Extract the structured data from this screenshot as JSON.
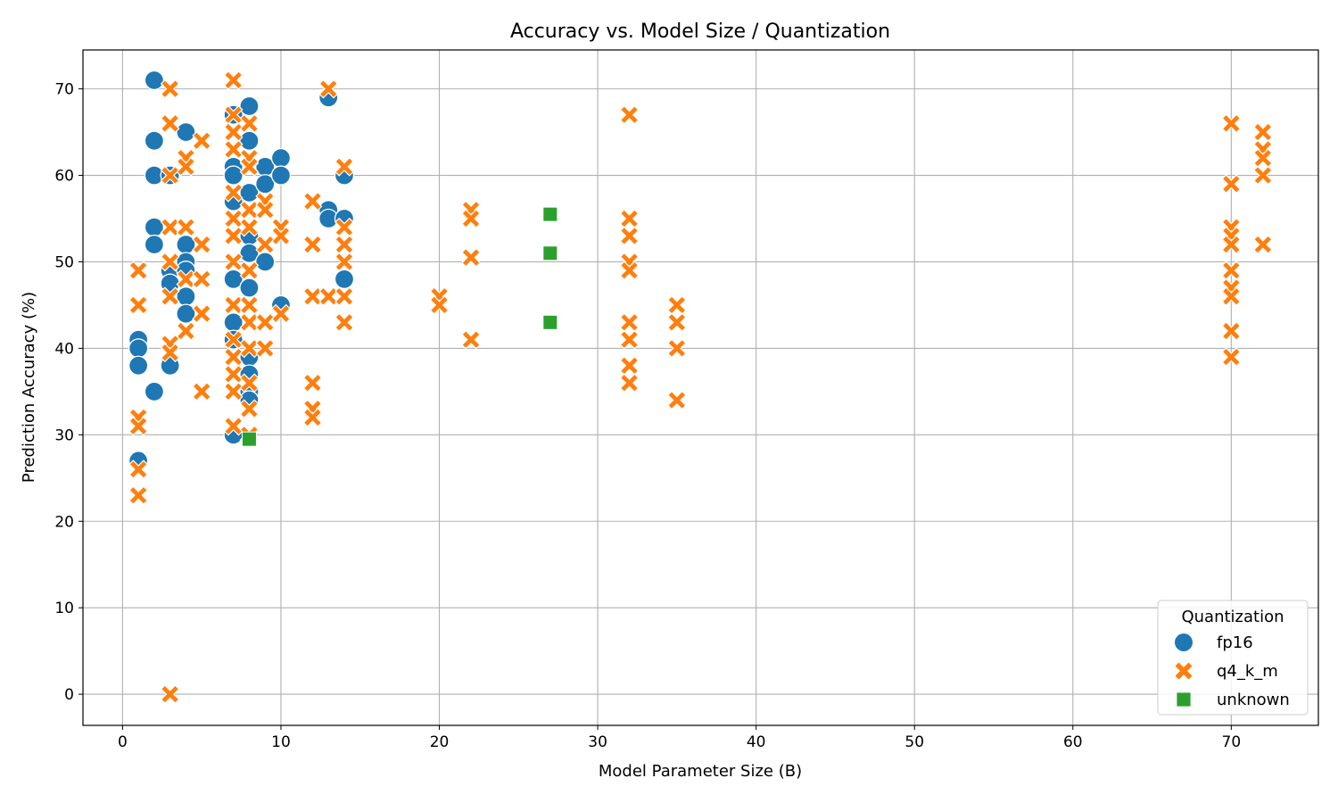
{
  "chart_data": {
    "type": "scatter",
    "title": "Accuracy vs. Model Size / Quantization",
    "xlabel": "Model Parameter Size (B)",
    "ylabel": "Prediction Accuracy (%)",
    "xlim": [
      -2.5,
      75.5
    ],
    "ylim": [
      -3.6,
      74.5
    ],
    "xticks": [
      0,
      10,
      20,
      30,
      40,
      50,
      60,
      70
    ],
    "yticks": [
      0,
      10,
      20,
      30,
      40,
      50,
      60,
      70
    ],
    "grid": true,
    "legend": {
      "title": "Quantization",
      "placement": "bottom-right"
    },
    "series": [
      {
        "name": "fp16",
        "marker": "circle",
        "color": "#1f77b4",
        "points": [
          [
            1,
            41
          ],
          [
            1,
            40
          ],
          [
            1,
            38
          ],
          [
            1,
            27
          ],
          [
            2,
            71
          ],
          [
            2,
            64
          ],
          [
            2,
            60
          ],
          [
            2,
            54
          ],
          [
            2,
            52
          ],
          [
            2,
            35
          ],
          [
            3,
            60
          ],
          [
            3,
            49
          ],
          [
            3,
            47.5
          ],
          [
            3,
            38
          ],
          [
            4,
            65
          ],
          [
            4,
            52
          ],
          [
            4,
            50
          ],
          [
            4,
            49
          ],
          [
            4,
            46
          ],
          [
            4,
            44
          ],
          [
            7,
            67
          ],
          [
            7,
            61
          ],
          [
            7,
            60
          ],
          [
            7,
            57
          ],
          [
            7,
            48
          ],
          [
            7,
            43
          ],
          [
            7,
            41
          ],
          [
            7,
            30
          ],
          [
            8,
            68
          ],
          [
            8,
            64
          ],
          [
            8,
            58
          ],
          [
            8,
            53
          ],
          [
            8,
            51
          ],
          [
            8,
            47
          ],
          [
            8,
            39
          ],
          [
            8,
            37
          ],
          [
            8,
            35
          ],
          [
            8,
            34
          ],
          [
            9,
            61
          ],
          [
            9,
            59
          ],
          [
            9,
            50
          ],
          [
            10,
            62
          ],
          [
            10,
            60
          ],
          [
            10,
            45
          ],
          [
            13,
            69
          ],
          [
            13,
            56
          ],
          [
            13,
            55
          ],
          [
            14,
            60
          ],
          [
            14,
            55
          ],
          [
            14,
            48
          ]
        ]
      },
      {
        "name": "q4_k_m",
        "marker": "x",
        "color": "#ff7f0e",
        "points": [
          [
            1,
            49
          ],
          [
            1,
            45
          ],
          [
            1,
            32
          ],
          [
            1,
            31
          ],
          [
            1,
            26
          ],
          [
            1,
            23
          ],
          [
            3,
            70
          ],
          [
            3,
            66
          ],
          [
            3,
            60
          ],
          [
            3,
            54
          ],
          [
            3,
            50
          ],
          [
            3,
            46
          ],
          [
            3,
            40.5
          ],
          [
            3,
            39.5
          ],
          [
            3,
            0
          ],
          [
            4,
            62
          ],
          [
            4,
            61
          ],
          [
            4,
            54
          ],
          [
            4,
            48
          ],
          [
            4,
            42
          ],
          [
            5,
            64
          ],
          [
            5,
            52
          ],
          [
            5,
            48
          ],
          [
            5,
            44
          ],
          [
            5,
            35
          ],
          [
            7,
            71
          ],
          [
            7,
            67
          ],
          [
            7,
            65
          ],
          [
            7,
            63
          ],
          [
            7,
            58
          ],
          [
            7,
            55
          ],
          [
            7,
            53
          ],
          [
            7,
            50
          ],
          [
            7,
            45
          ],
          [
            7,
            41
          ],
          [
            7,
            39
          ],
          [
            7,
            37
          ],
          [
            7,
            35
          ],
          [
            7,
            31
          ],
          [
            8,
            66
          ],
          [
            8,
            62
          ],
          [
            8,
            61
          ],
          [
            8,
            56
          ],
          [
            8,
            54
          ],
          [
            8,
            49
          ],
          [
            8,
            45
          ],
          [
            8,
            43
          ],
          [
            8,
            40
          ],
          [
            8,
            36
          ],
          [
            8,
            33
          ],
          [
            8,
            30
          ],
          [
            9,
            57
          ],
          [
            9,
            56
          ],
          [
            9,
            52
          ],
          [
            9,
            43
          ],
          [
            9,
            40
          ],
          [
            10,
            54
          ],
          [
            10,
            53
          ],
          [
            10,
            44
          ],
          [
            12,
            57
          ],
          [
            12,
            52
          ],
          [
            12,
            46
          ],
          [
            12,
            36
          ],
          [
            12,
            33
          ],
          [
            12,
            32
          ],
          [
            13,
            70
          ],
          [
            13,
            46
          ],
          [
            14,
            61
          ],
          [
            14,
            54
          ],
          [
            14,
            52
          ],
          [
            14,
            50
          ],
          [
            14,
            46
          ],
          [
            14,
            43
          ],
          [
            20,
            46
          ],
          [
            20,
            45
          ],
          [
            22,
            56
          ],
          [
            22,
            55
          ],
          [
            22,
            50.5
          ],
          [
            22,
            41
          ],
          [
            32,
            67
          ],
          [
            32,
            55
          ],
          [
            32,
            53
          ],
          [
            32,
            50
          ],
          [
            32,
            49
          ],
          [
            32,
            43
          ],
          [
            32,
            41
          ],
          [
            32,
            38
          ],
          [
            32,
            36
          ],
          [
            35,
            45
          ],
          [
            35,
            43
          ],
          [
            35,
            40
          ],
          [
            35,
            34
          ],
          [
            70,
            66
          ],
          [
            70,
            59
          ],
          [
            70,
            54
          ],
          [
            70,
            53
          ],
          [
            70,
            52
          ],
          [
            70,
            49
          ],
          [
            70,
            47
          ],
          [
            70,
            46
          ],
          [
            70,
            42
          ],
          [
            70,
            39
          ],
          [
            72,
            65
          ],
          [
            72,
            63
          ],
          [
            72,
            62
          ],
          [
            72,
            60
          ],
          [
            72,
            52
          ]
        ]
      },
      {
        "name": "unknown",
        "marker": "square",
        "color": "#2ca02c",
        "points": [
          [
            8,
            29.5
          ],
          [
            27,
            55.5
          ],
          [
            27,
            51
          ],
          [
            27,
            43
          ]
        ]
      }
    ]
  }
}
